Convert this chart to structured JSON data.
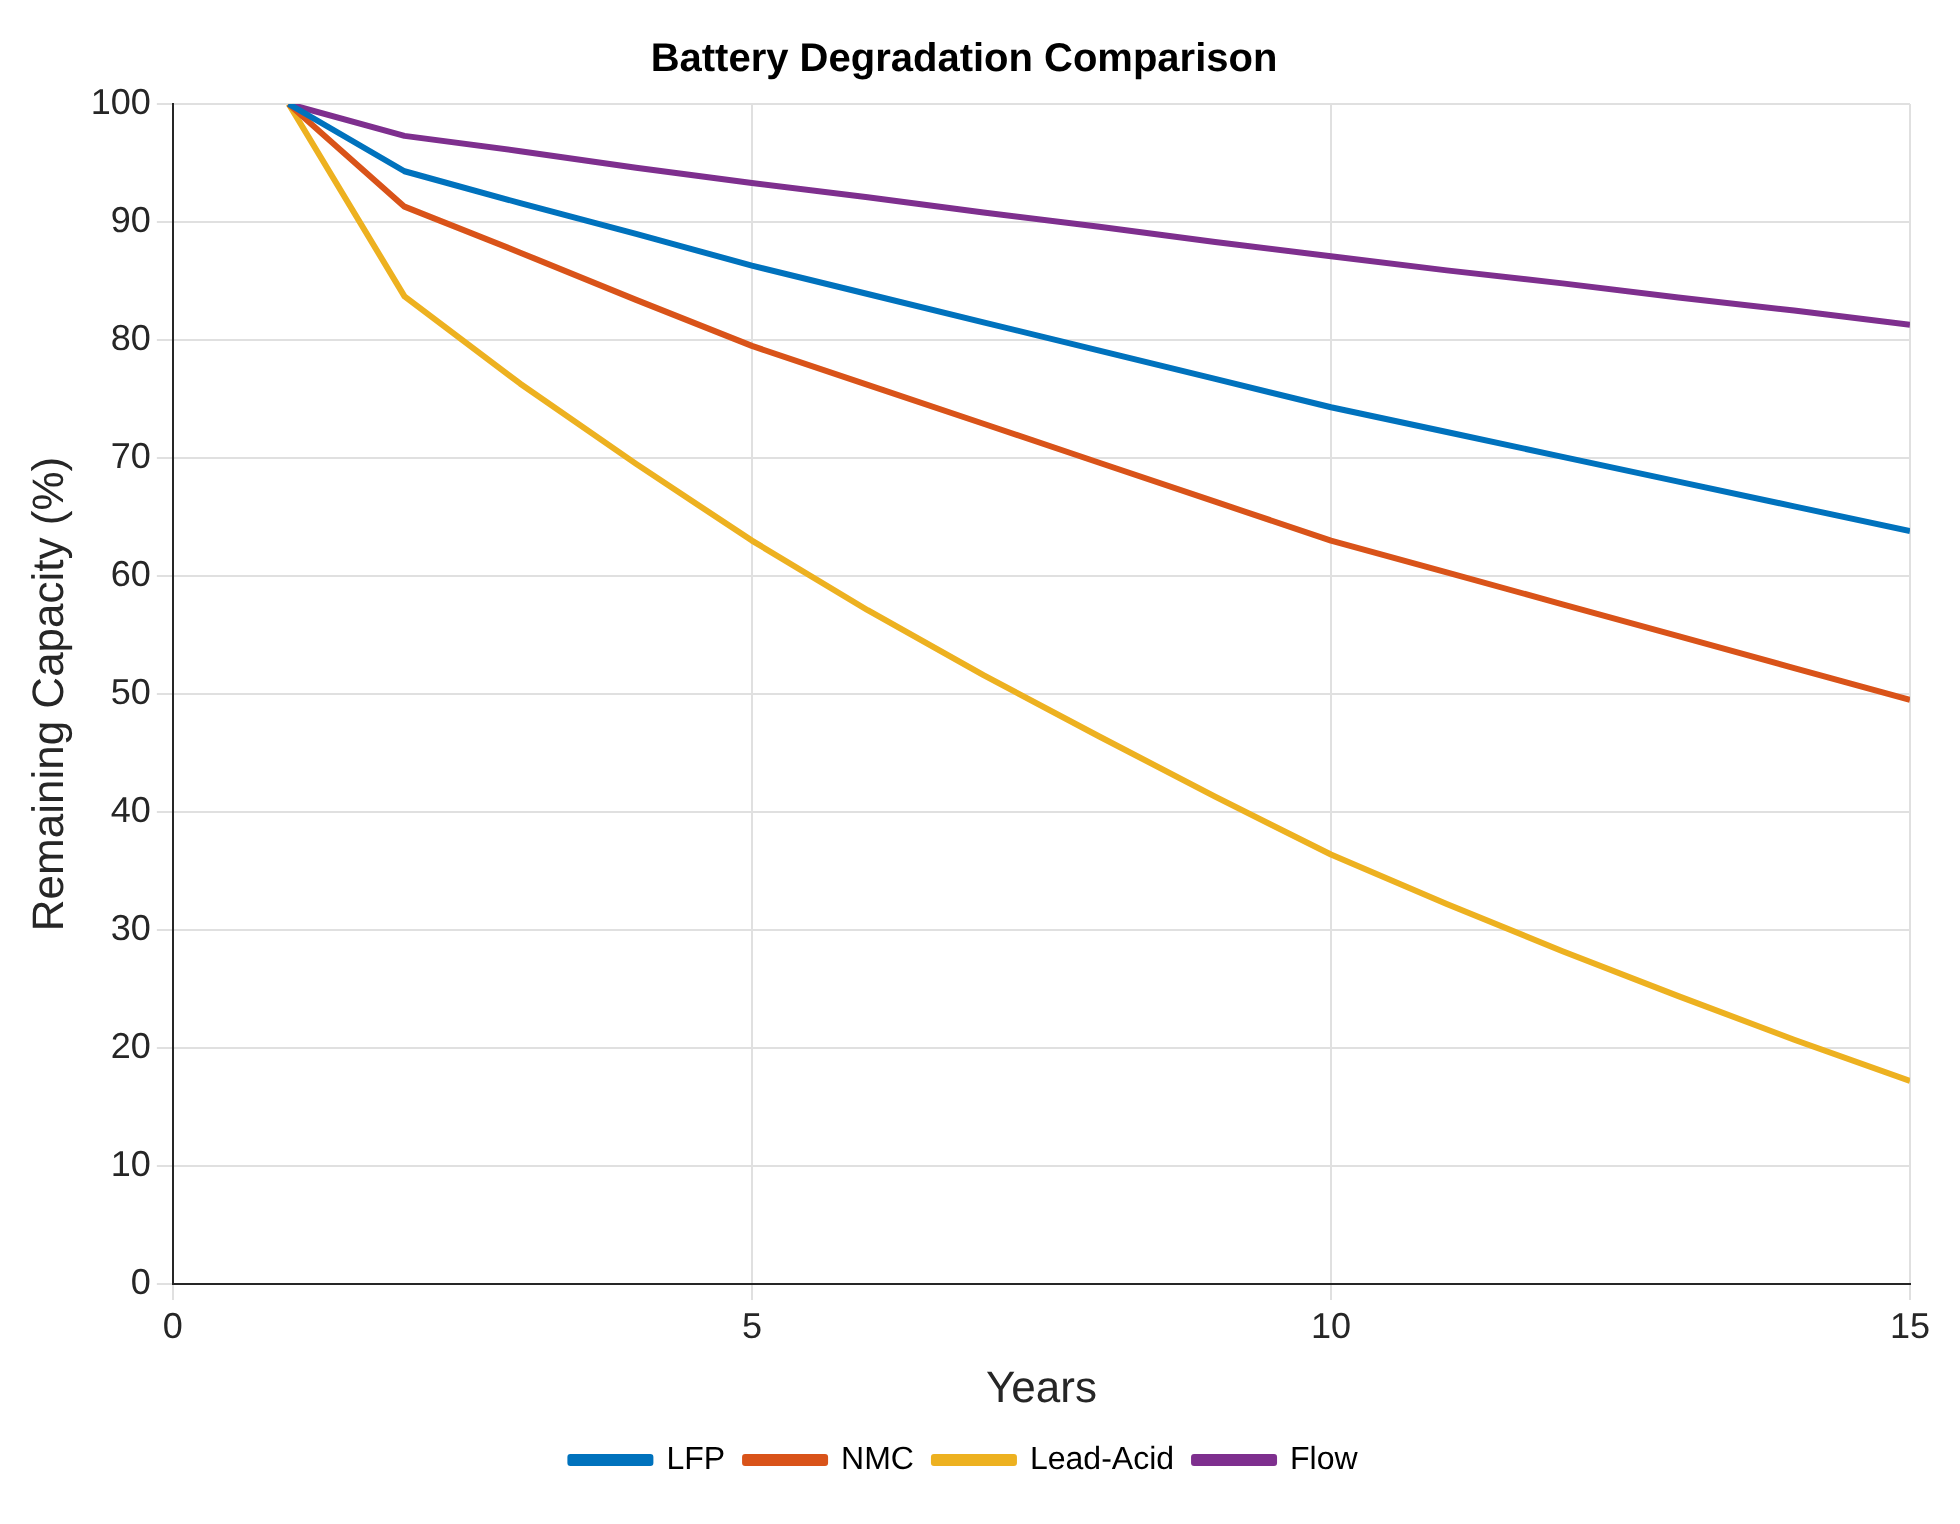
{
  "chart_data": {
    "type": "line",
    "title": "Battery Degradation Comparison",
    "xlabel": "Years",
    "ylabel": "Remaining Capacity (%)",
    "x": [
      1,
      2,
      3,
      4,
      5,
      6,
      7,
      8,
      9,
      10,
      11,
      12,
      13,
      14,
      15
    ],
    "series": [
      {
        "name": "LFP",
        "color": "#0072bd",
        "values": [
          100,
          94.3,
          91.6,
          89.0,
          86.3,
          83.9,
          81.5,
          79.1,
          76.7,
          74.3,
          72.2,
          70.1,
          68.0,
          65.9,
          63.8
        ]
      },
      {
        "name": "NMC",
        "color": "#d95319",
        "values": [
          100,
          91.3,
          87.4,
          83.4,
          79.5,
          76.2,
          72.9,
          69.6,
          66.3,
          63.0,
          60.3,
          57.6,
          54.9,
          52.2,
          49.5
        ]
      },
      {
        "name": "Lead-Acid",
        "color": "#edb120",
        "values": [
          100,
          83.7,
          76.3,
          69.5,
          63.0,
          57.1,
          51.6,
          46.4,
          41.3,
          36.4,
          32.2,
          28.2,
          24.4,
          20.7,
          17.2
        ]
      },
      {
        "name": "Flow",
        "color": "#7e2f8e",
        "values": [
          100,
          97.3,
          96.0,
          94.6,
          93.3,
          92.1,
          90.8,
          89.6,
          88.3,
          87.1,
          85.9,
          84.8,
          83.6,
          82.5,
          81.3
        ]
      }
    ],
    "xlim": [
      0,
      15
    ],
    "xticks": [
      0,
      5,
      10,
      15
    ],
    "ylim": [
      0,
      100
    ],
    "yticks": [
      0,
      10,
      20,
      30,
      40,
      50,
      60,
      70,
      80,
      90,
      100
    ],
    "grid": true,
    "legend": "bottom",
    "marker": "none",
    "line_style": "solid"
  }
}
